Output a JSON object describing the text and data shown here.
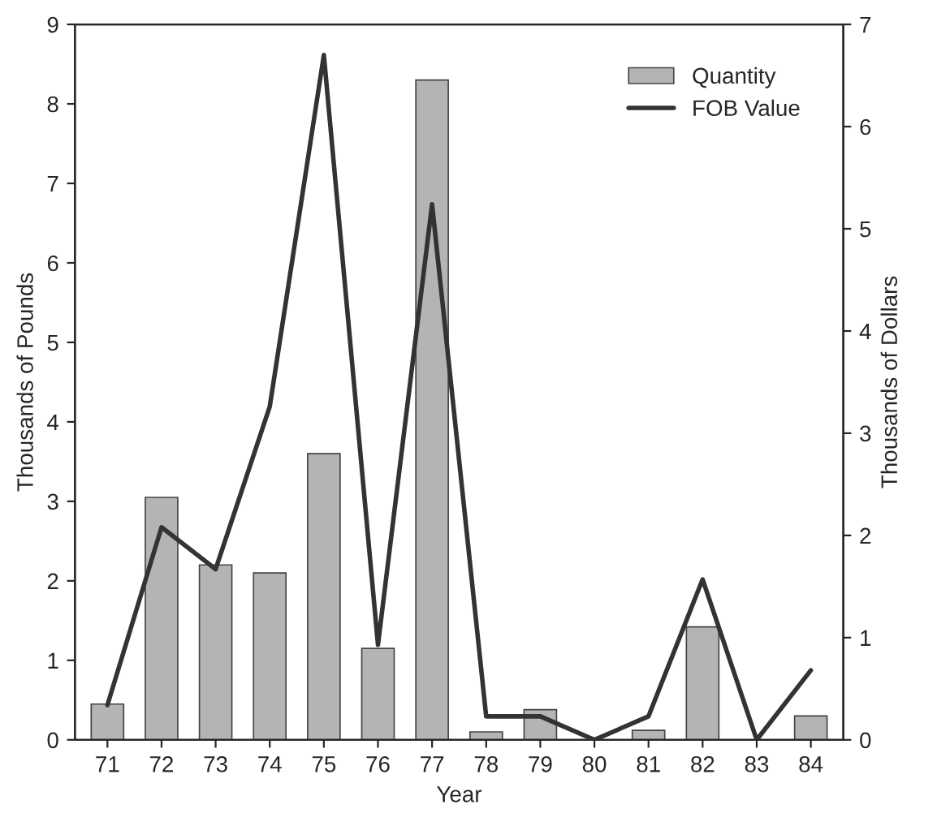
{
  "chart_data": {
    "type": "bar",
    "xlabel": "Year",
    "ylabel": "Thousands of Pounds",
    "y2label": "Thousands of Dollars",
    "categories": [
      "71",
      "72",
      "73",
      "74",
      "75",
      "76",
      "77",
      "78",
      "79",
      "80",
      "81",
      "82",
      "83",
      "84"
    ],
    "series": [
      {
        "name": "Quantity",
        "color": "#b4b4b4",
        "values": [
          0.45,
          3.05,
          2.2,
          2.1,
          3.6,
          1.15,
          8.3,
          0.1,
          0.38,
          0,
          0.12,
          1.42,
          0,
          0.3
        ]
      },
      {
        "name": "FOB Value",
        "type": "line",
        "axis": "y2",
        "color": "#333333",
        "values": [
          0.34,
          2.08,
          1.67,
          3.26,
          6.7,
          0.93,
          5.24,
          0.23,
          0.23,
          0,
          0.23,
          1.57,
          0,
          0.68
        ]
      }
    ],
    "ylim": [
      0,
      9
    ],
    "yticks": [
      0,
      1,
      2,
      3,
      4,
      5,
      6,
      7,
      8,
      9
    ],
    "y2lim": [
      0,
      7
    ],
    "y2ticks": [
      0,
      1,
      2,
      3,
      4,
      5,
      6,
      7
    ],
    "legend": "top right",
    "grid": false
  }
}
